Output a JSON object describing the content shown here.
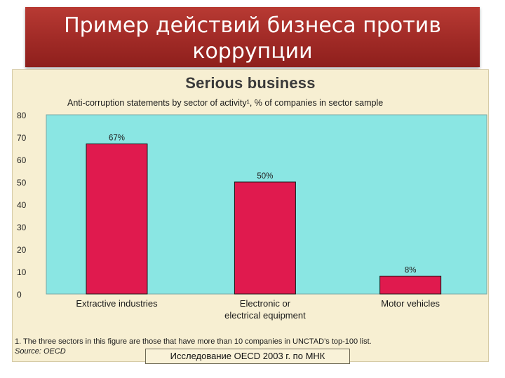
{
  "slide_title": "Пример действий бизнеса против коррупции",
  "caption": "Исследование OECD 2003 г. по МНК",
  "chart_data": {
    "type": "bar",
    "title": "Serious business",
    "subtitle": "Anti-corruption statements by sector of activity¹, % of companies in sector sample",
    "categories": [
      "Extractive industries",
      "Electronic or\nelectrical equipment",
      "Motor vehicles"
    ],
    "values": [
      67,
      50,
      8
    ],
    "data_labels": [
      "67%",
      "50%",
      "8%"
    ],
    "ylim": [
      0,
      80
    ],
    "yticks": [
      0,
      10,
      20,
      30,
      40,
      50,
      60,
      70,
      80
    ],
    "grid": false,
    "colors": {
      "plot_background": "#8ae6e3",
      "bar": "#e01a4e",
      "figure_background": "#f7efd2",
      "banner": "#a52d28"
    },
    "footnote": "1. The three sectors in this figure are those that have more than 10 companies in UNCTAD’s top-100 list.",
    "source": "Source: OECD"
  }
}
